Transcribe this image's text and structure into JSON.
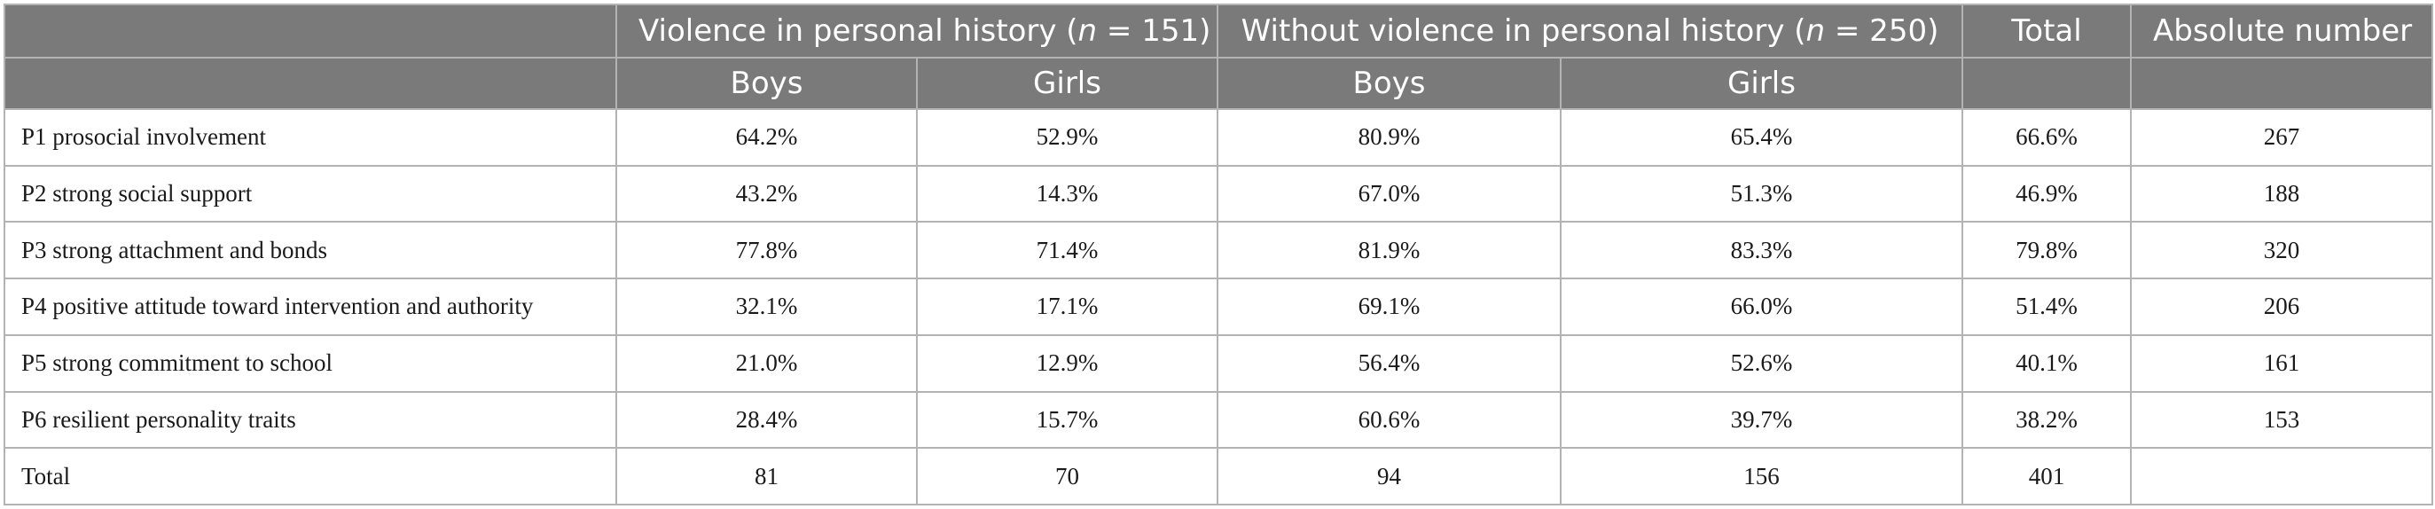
{
  "header": {
    "group1": {
      "prefix": "Violence in personal history (",
      "var": "n",
      "suffix": " = 151)"
    },
    "group2": {
      "prefix": "Without violence in personal history (",
      "var": "n",
      "suffix": " = 250)"
    },
    "total": "Total",
    "absolute": "Absolute number",
    "sub": [
      "Boys",
      "Girls",
      "Boys",
      "Girls"
    ]
  },
  "rows": [
    {
      "label": "P1 prosocial involvement",
      "cells": [
        "64.2%",
        "52.9%",
        "80.9%",
        "65.4%",
        "66.6%",
        "267"
      ]
    },
    {
      "label": "P2 strong social support",
      "cells": [
        "43.2%",
        "14.3%",
        "67.0%",
        "51.3%",
        "46.9%",
        "188"
      ]
    },
    {
      "label": "P3 strong attachment and bonds",
      "cells": [
        "77.8%",
        "71.4%",
        "81.9%",
        "83.3%",
        "79.8%",
        "320"
      ]
    },
    {
      "label": "P4 positive attitude toward intervention and authority",
      "cells": [
        "32.1%",
        "17.1%",
        "69.1%",
        "66.0%",
        "51.4%",
        "206"
      ]
    },
    {
      "label": "P5 strong commitment to school",
      "cells": [
        "21.0%",
        "12.9%",
        "56.4%",
        "52.6%",
        "40.1%",
        "161"
      ]
    },
    {
      "label": "P6 resilient personality traits",
      "cells": [
        "28.4%",
        "15.7%",
        "60.6%",
        "39.7%",
        "38.2%",
        "153"
      ]
    },
    {
      "label": "Total",
      "cells": [
        "81",
        "70",
        "94",
        "156",
        "401",
        ""
      ]
    }
  ]
}
